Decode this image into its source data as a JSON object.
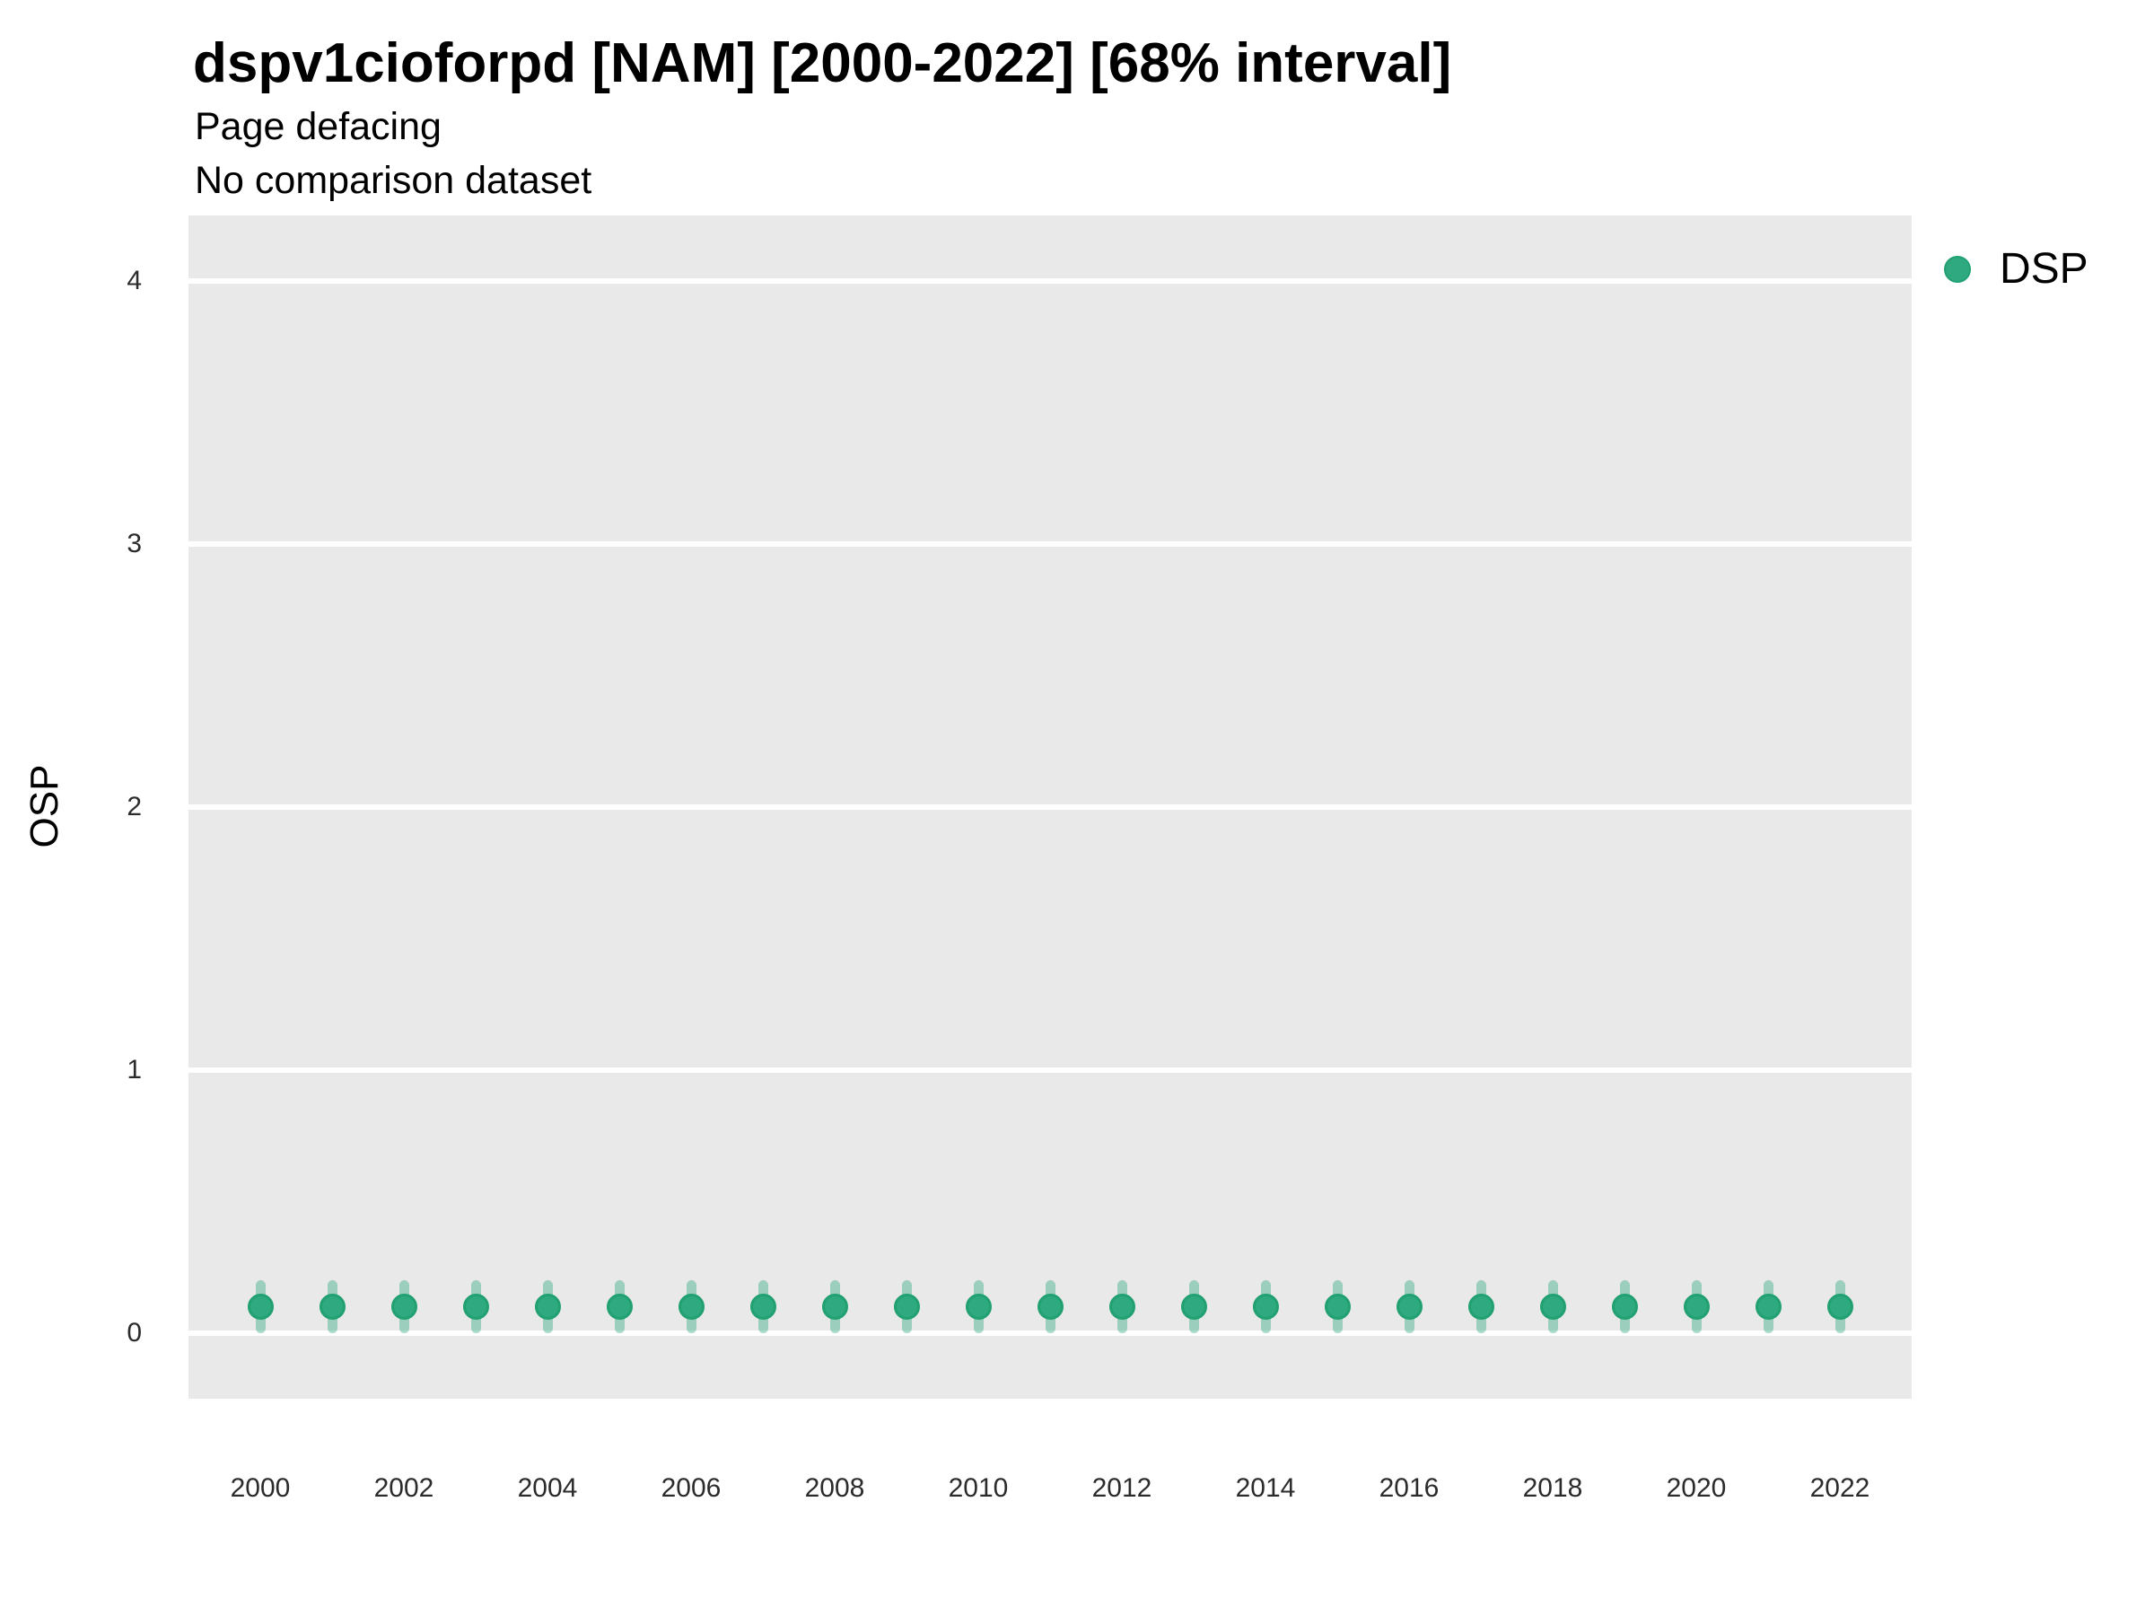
{
  "header": {
    "title": "dspv1cioforpd [NAM] [2000-2022] [68% interval]",
    "subtitle_line1": "Page defacing",
    "subtitle_line2": "No comparison dataset"
  },
  "legend": {
    "label": "DSP",
    "position": "right"
  },
  "colors": {
    "panel_bg": "#e9e9e9",
    "gridline": "#ffffff",
    "point_fill": "#2faa80",
    "point_border": "#21a072",
    "interval": "#2faa80",
    "interval_opacity": "0.42",
    "tick_text": "#2b2b2b",
    "title_text": "#000000"
  },
  "chart_data": {
    "type": "scatter",
    "title": "dspv1cioforpd [NAM] [2000-2022] [68% interval]",
    "subtitle": [
      "Page defacing",
      "No comparison dataset"
    ],
    "interval_label": "68% interval",
    "xlabel": "",
    "ylabel": "OSP",
    "x": [
      2000,
      2001,
      2002,
      2003,
      2004,
      2005,
      2006,
      2007,
      2008,
      2009,
      2010,
      2011,
      2012,
      2013,
      2014,
      2015,
      2016,
      2017,
      2018,
      2019,
      2020,
      2021,
      2022
    ],
    "series": [
      {
        "name": "DSP",
        "values": [
          0.1,
          0.1,
          0.1,
          0.1,
          0.1,
          0.1,
          0.1,
          0.1,
          0.1,
          0.1,
          0.1,
          0.1,
          0.1,
          0.1,
          0.1,
          0.1,
          0.1,
          0.1,
          0.1,
          0.1,
          0.1,
          0.1,
          0.1
        ],
        "lower": [
          0.0,
          0.0,
          0.0,
          0.0,
          0.0,
          0.0,
          0.0,
          0.0,
          0.0,
          0.0,
          0.0,
          0.0,
          0.0,
          0.0,
          0.0,
          0.0,
          0.0,
          0.0,
          0.0,
          0.0,
          0.0,
          0.0,
          0.0
        ],
        "upper": [
          0.2,
          0.2,
          0.2,
          0.2,
          0.2,
          0.2,
          0.2,
          0.2,
          0.2,
          0.2,
          0.2,
          0.2,
          0.2,
          0.2,
          0.2,
          0.2,
          0.2,
          0.2,
          0.2,
          0.2,
          0.2,
          0.2,
          0.2
        ]
      }
    ],
    "xticks": [
      2000,
      2002,
      2004,
      2006,
      2008,
      2010,
      2012,
      2014,
      2016,
      2018,
      2020,
      2022
    ],
    "yticks": [
      0,
      1,
      2,
      3,
      4
    ],
    "xlim": [
      1999,
      2023
    ],
    "ylim": [
      -0.25,
      4.25
    ],
    "grid": "horizontal-major-only",
    "legend_position": "right"
  }
}
